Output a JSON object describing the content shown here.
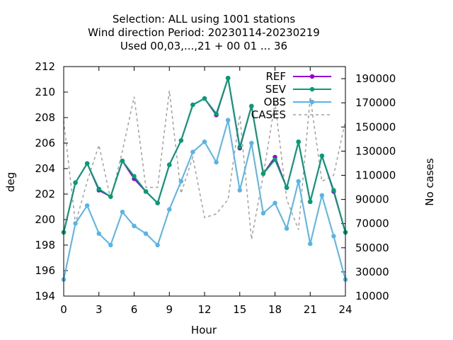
{
  "chart_data": {
    "type": "line",
    "title_lines": [
      "Selection: ALL using  1001 stations",
      "Wind direction   Period: 20230114-20230219",
      "Used  00,03,...,21  + 00 01 ... 36"
    ],
    "xlabel": "Hour",
    "ylabel": "deg",
    "y2label": "No cases",
    "xlim": [
      0,
      24
    ],
    "ylim": [
      194,
      212
    ],
    "y2lim": [
      10000,
      200000
    ],
    "xticks": [
      0,
      3,
      6,
      9,
      12,
      15,
      18,
      21,
      24
    ],
    "yticks": [
      194,
      196,
      198,
      200,
      202,
      204,
      206,
      208,
      210,
      212
    ],
    "y2ticks": [
      10000,
      30000,
      50000,
      70000,
      90000,
      110000,
      130000,
      150000,
      170000,
      190000
    ],
    "x": [
      0,
      1,
      2,
      3,
      4,
      5,
      6,
      7,
      8,
      9,
      10,
      11,
      12,
      13,
      14,
      15,
      16,
      17,
      18,
      19,
      20,
      21,
      22,
      23,
      24
    ],
    "series": [
      {
        "name": "REF",
        "color": "#9400d3",
        "axis": "y1",
        "style": "line-points",
        "values": [
          199.0,
          202.9,
          204.4,
          202.3,
          201.8,
          204.6,
          203.2,
          202.2,
          201.3,
          204.3,
          206.2,
          209.0,
          209.5,
          208.2,
          211.1,
          205.6,
          208.9,
          203.6,
          204.9,
          202.5,
          206.1,
          201.4,
          205.0,
          202.2,
          199.0
        ]
      },
      {
        "name": "SEV",
        "color": "#009e73",
        "axis": "y1",
        "style": "line-points",
        "values": [
          199.0,
          202.9,
          204.4,
          202.4,
          201.8,
          204.6,
          203.4,
          202.2,
          201.3,
          204.3,
          206.2,
          209.0,
          209.5,
          208.3,
          211.1,
          205.7,
          208.9,
          203.6,
          204.7,
          202.5,
          206.1,
          201.4,
          205.0,
          202.3,
          199.0
        ]
      },
      {
        "name": "OBS",
        "color": "#56b4e9",
        "axis": "y1",
        "style": "line-points",
        "values": [
          195.3,
          199.7,
          201.1,
          198.9,
          198.0,
          200.6,
          199.5,
          198.9,
          198.0,
          200.8,
          203.0,
          205.3,
          206.1,
          204.5,
          207.8,
          202.3,
          206.0,
          200.5,
          201.3,
          199.3,
          203.0,
          198.1,
          201.9,
          198.7,
          195.3
        ]
      },
      {
        "name": "CASES",
        "color": "#a0a0a0",
        "axis": "y2",
        "style": "dashed",
        "values": [
          155000,
          70000,
          105000,
          135000,
          90000,
          130000,
          175000,
          100000,
          100000,
          180000,
          95000,
          125000,
          75000,
          78000,
          90000,
          160000,
          57000,
          110000,
          170000,
          90000,
          65000,
          175000,
          105000,
          110000,
          155000
        ]
      }
    ],
    "legend_position": "top-right"
  }
}
